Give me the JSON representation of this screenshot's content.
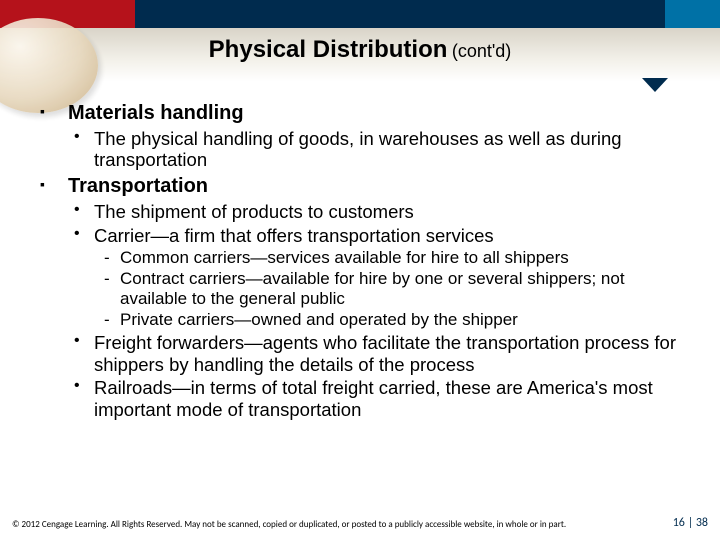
{
  "header": {
    "title_main": "Physical Distribution",
    "title_sub": "(cont'd)",
    "colors": {
      "red": "#b5121b",
      "navy": "#002b4e",
      "teal": "#0071a6"
    }
  },
  "content": {
    "items": [
      {
        "label": "Materials handling",
        "sub": [
          {
            "text": "The physical handling of goods, in warehouses as well as during transportation"
          }
        ]
      },
      {
        "label": "Transportation",
        "sub": [
          {
            "text": "The shipment of products to customers"
          },
          {
            "text": "Carrier—a firm that offers transportation services",
            "sub": [
              "Common carriers—services available for hire to all shippers",
              "Contract carriers—available for hire by one or several shippers; not available to the general public",
              "Private carriers—owned and operated by the shipper"
            ]
          },
          {
            "text": "Freight forwarders—agents who facilitate the transportation process for shippers by handling the details of the process"
          },
          {
            "text": "Railroads—in terms of total freight carried, these are America's most important mode of transportation"
          }
        ]
      }
    ]
  },
  "footer": {
    "copyright": "© 2012 Cengage Learning. All Rights Reserved. May not be scanned, copied or duplicated, or posted to a publicly accessible website, in whole or in part.",
    "page_current": "16",
    "page_sep": " | ",
    "page_total": "38"
  }
}
